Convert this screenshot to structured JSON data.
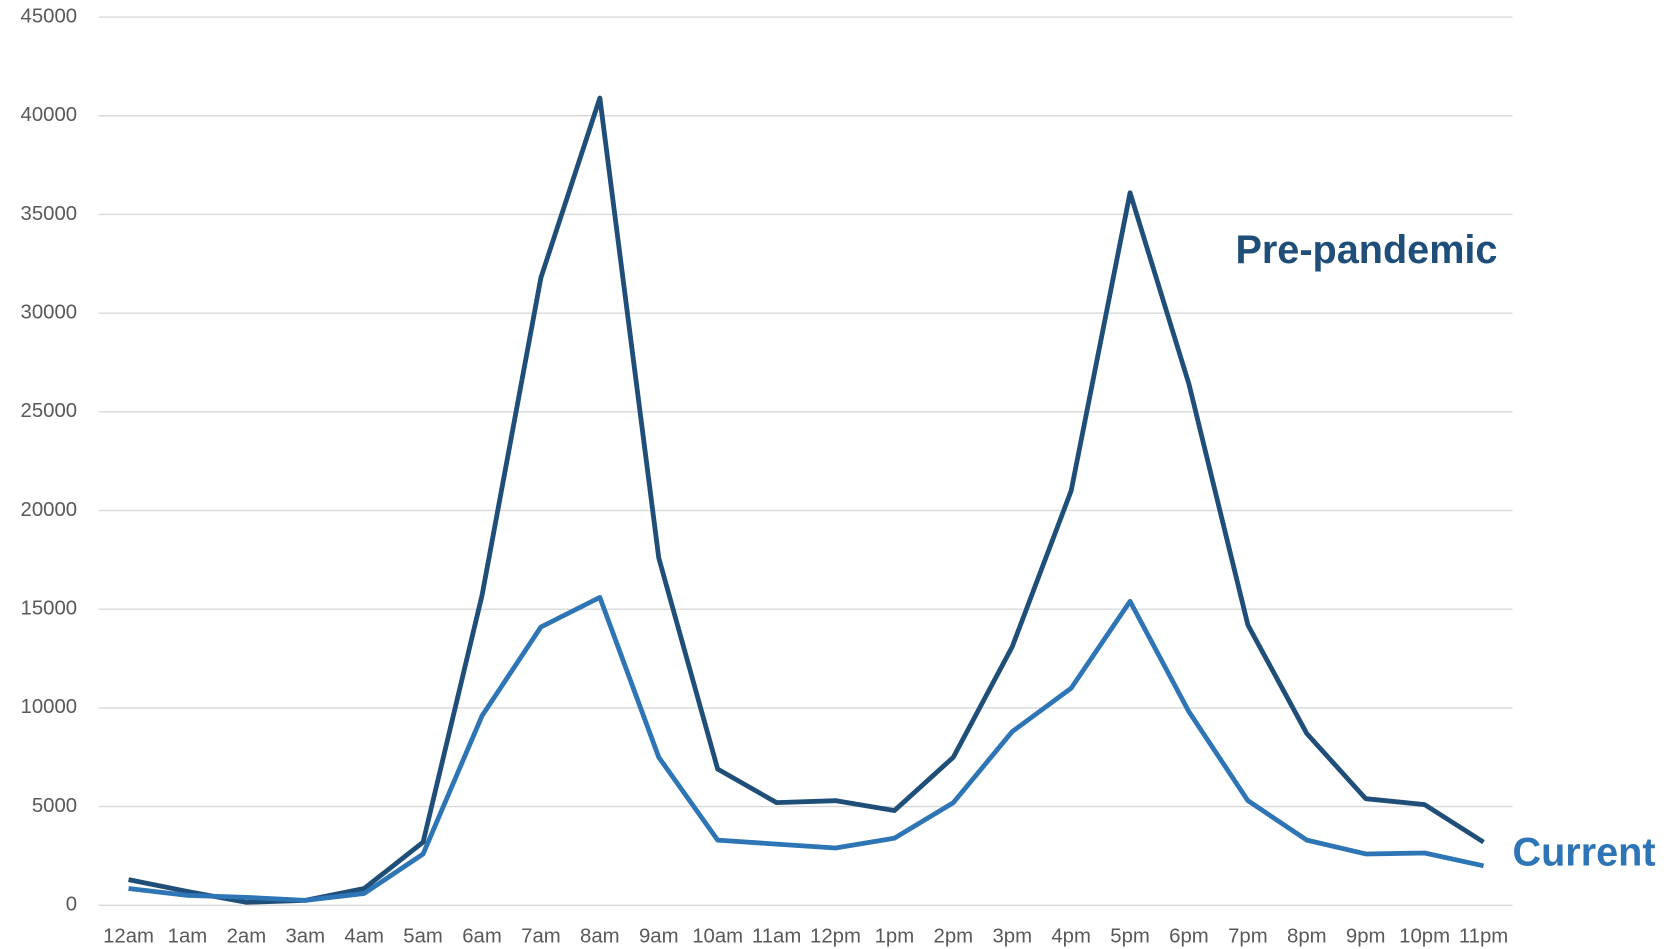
{
  "chart_data": {
    "type": "line",
    "categories": [
      "12am",
      "1am",
      "2am",
      "3am",
      "4am",
      "5am",
      "6am",
      "7am",
      "8am",
      "9am",
      "10am",
      "11am",
      "12pm",
      "1pm",
      "2pm",
      "3pm",
      "4pm",
      "5pm",
      "6pm",
      "7pm",
      "8pm",
      "9pm",
      "10pm",
      "11pm"
    ],
    "series": [
      {
        "name": "Pre-pandemic",
        "color": "#1f4e79",
        "values": [
          1300,
          700,
          150,
          250,
          850,
          3200,
          15700,
          31800,
          40900,
          17600,
          6900,
          5200,
          5300,
          4800,
          7500,
          13100,
          21000,
          36100,
          26400,
          14200,
          8700,
          5400,
          5100,
          3200
        ]
      },
      {
        "name": "Current",
        "color": "#2e75b6",
        "values": [
          850,
          500,
          400,
          250,
          600,
          2600,
          9600,
          14100,
          15600,
          7500,
          3300,
          3100,
          2900,
          3400,
          5200,
          8800,
          11000,
          15400,
          9800,
          5300,
          3300,
          2600,
          2650,
          2000
        ]
      }
    ],
    "ylim": [
      0,
      45000
    ],
    "yticks": [
      0,
      5000,
      10000,
      15000,
      20000,
      25000,
      30000,
      35000,
      40000,
      45000
    ],
    "grid": true
  }
}
